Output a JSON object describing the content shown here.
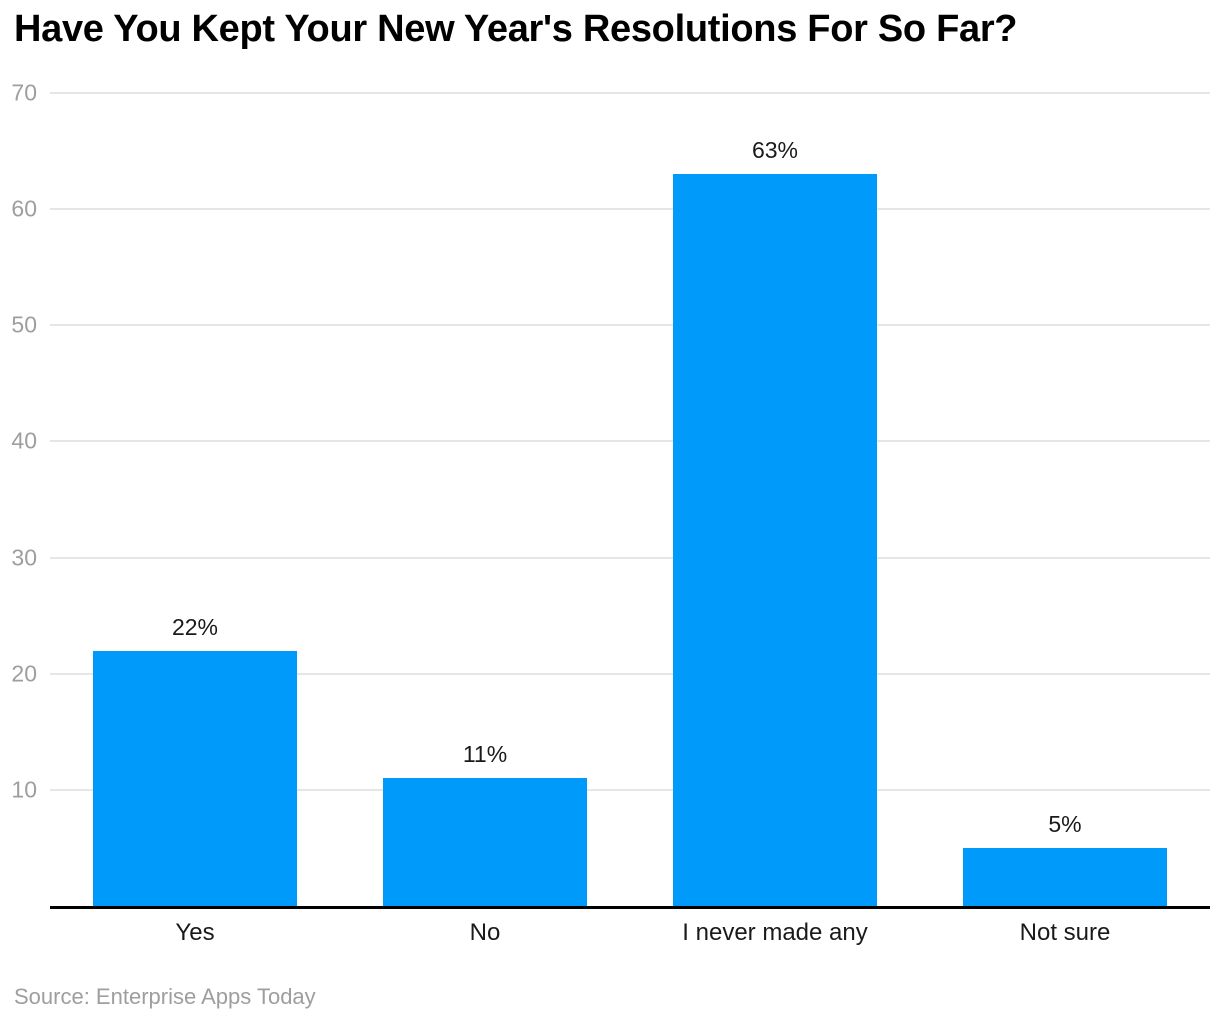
{
  "title": "Have You Kept Your New Year's Resolutions For So Far?",
  "source": "Source: Enterprise Apps Today",
  "chart_data": {
    "type": "bar",
    "title": "Have You Kept Your New Year's Resolutions For So Far?",
    "categories": [
      "Yes",
      "No",
      "I never made any",
      "Not sure"
    ],
    "values": [
      22,
      11,
      63,
      5
    ],
    "value_labels": [
      "22%",
      "11%",
      "63%",
      "5%"
    ],
    "xlabel": "",
    "ylabel": "",
    "ylim": [
      0,
      70
    ],
    "yticks": [
      10,
      20,
      30,
      40,
      50,
      60,
      70
    ],
    "grid": true,
    "legend": false,
    "source": "Source: Enterprise Apps Today",
    "colors": {
      "bar": "#009BFA",
      "gridline": "#e6e6e6",
      "axis_line": "#000000",
      "tick_label": "#9e9e9e",
      "data_label": "#1a1a1a",
      "category_label": "#1a1a1a",
      "title": "#000000",
      "source": "#9e9e9e",
      "background": "#ffffff"
    }
  }
}
